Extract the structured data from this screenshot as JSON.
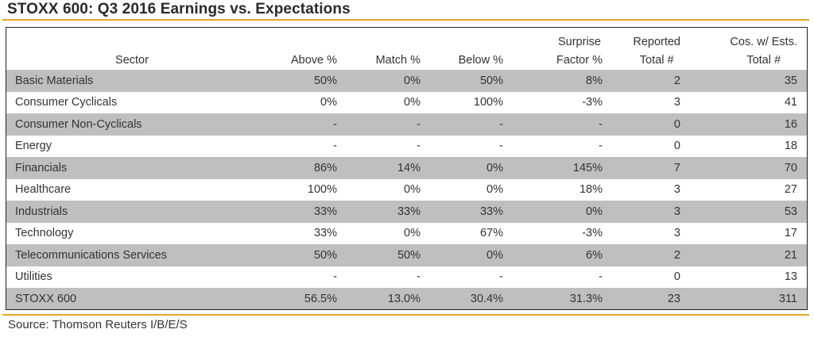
{
  "title": "STOXX 600: Q3 2016 Earnings vs. Expectations",
  "source": "Source: Thomson Reuters I/B/E/S",
  "accent_color": "#e5a627",
  "row_shade_color": "#bfbfbf",
  "columns": {
    "sector": "Sector",
    "above": "Above %",
    "match": "Match %",
    "below": "Below %",
    "surprise_line1": "Surprise",
    "surprise_line2": "Factor %",
    "reported_line1": "Reported",
    "reported_line2": "Total #",
    "total_line1": "Cos. w/ Ests.",
    "total_line2": "Total #"
  },
  "rows": [
    {
      "sector": "Basic Materials",
      "above": "50%",
      "match": "0%",
      "below": "50%",
      "surprise": "8%",
      "reported": "2",
      "total": "35"
    },
    {
      "sector": "Consumer Cyclicals",
      "above": "0%",
      "match": "0%",
      "below": "100%",
      "surprise": "-3%",
      "reported": "3",
      "total": "41"
    },
    {
      "sector": "Consumer Non-Cyclicals",
      "above": "-",
      "match": "-",
      "below": "-",
      "surprise": "-",
      "reported": "0",
      "total": "16"
    },
    {
      "sector": "Energy",
      "above": "-",
      "match": "-",
      "below": "-",
      "surprise": "-",
      "reported": "0",
      "total": "18"
    },
    {
      "sector": "Financials",
      "above": "86%",
      "match": "14%",
      "below": "0%",
      "surprise": "145%",
      "reported": "7",
      "total": "70"
    },
    {
      "sector": "Healthcare",
      "above": "100%",
      "match": "0%",
      "below": "0%",
      "surprise": "18%",
      "reported": "3",
      "total": "27"
    },
    {
      "sector": "Industrials",
      "above": "33%",
      "match": "33%",
      "below": "33%",
      "surprise": "0%",
      "reported": "3",
      "total": "53"
    },
    {
      "sector": "Technology",
      "above": "33%",
      "match": "0%",
      "below": "67%",
      "surprise": "-3%",
      "reported": "3",
      "total": "17"
    },
    {
      "sector": "Telecommunications Services",
      "above": "50%",
      "match": "50%",
      "below": "0%",
      "surprise": "6%",
      "reported": "2",
      "total": "21"
    },
    {
      "sector": "Utilities",
      "above": "-",
      "match": "-",
      "below": "-",
      "surprise": "-",
      "reported": "0",
      "total": "13"
    }
  ],
  "total_row": {
    "sector": "STOXX 600",
    "above": "56.5%",
    "match": "13.0%",
    "below": "30.4%",
    "surprise": "31.3%",
    "reported": "23",
    "total": "311"
  }
}
